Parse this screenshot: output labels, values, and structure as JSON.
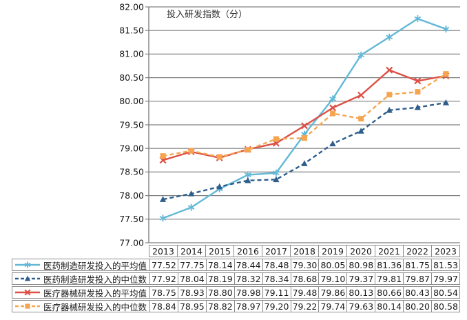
{
  "window": {
    "background": "#ffffff"
  },
  "chart_data": {
    "type": "line",
    "title": "投入研发指数（分）",
    "xlabel": "",
    "ylabel": "",
    "categories": [
      "2013",
      "2014",
      "2015",
      "2016",
      "2017",
      "2018",
      "2019",
      "2020",
      "2021",
      "2022",
      "2023"
    ],
    "ylim": [
      77.0,
      82.0
    ],
    "y_axis": {
      "min": 77.0,
      "max": 82.0,
      "step": 0.5,
      "tick_labels": [
        "82.00",
        "81.50",
        "81.00",
        "80.50",
        "80.00",
        "79.50",
        "79.00",
        "78.50",
        "78.00",
        "77.50",
        "77.00"
      ]
    },
    "grid": true,
    "grid_color": "#808080",
    "axis_color": "#808080",
    "text_color": "#1a1a1a",
    "table_border_color": "#8c8c8c",
    "legend_position": "table-left",
    "series": [
      {
        "name": "医药制造研发投入的平均值",
        "color": "#62B8D6",
        "marker": "asterisk",
        "line_style": "solid",
        "values": [
          77.52,
          77.75,
          78.14,
          78.44,
          78.48,
          79.3,
          80.05,
          80.98,
          81.36,
          81.75,
          81.53
        ]
      },
      {
        "name": "医药制造研发投入的中位数",
        "color": "#2F5E8D",
        "marker": "triangle",
        "line_style": "dashed",
        "values": [
          77.92,
          78.04,
          78.19,
          78.32,
          78.34,
          78.68,
          79.1,
          79.37,
          79.81,
          79.87,
          79.97
        ]
      },
      {
        "name": "医疗器械研发投入的平均值",
        "color": "#DC5045",
        "marker": "x",
        "line_style": "solid",
        "values": [
          78.75,
          78.93,
          78.8,
          78.98,
          79.11,
          79.48,
          79.86,
          80.13,
          80.66,
          80.43,
          80.54
        ]
      },
      {
        "name": "医疗器械研发投入的中位数",
        "color": "#F5A54F",
        "marker": "square",
        "line_style": "dashed",
        "values": [
          78.84,
          78.95,
          78.82,
          78.97,
          79.2,
          79.22,
          79.74,
          79.63,
          80.14,
          80.2,
          80.58
        ]
      }
    ]
  }
}
